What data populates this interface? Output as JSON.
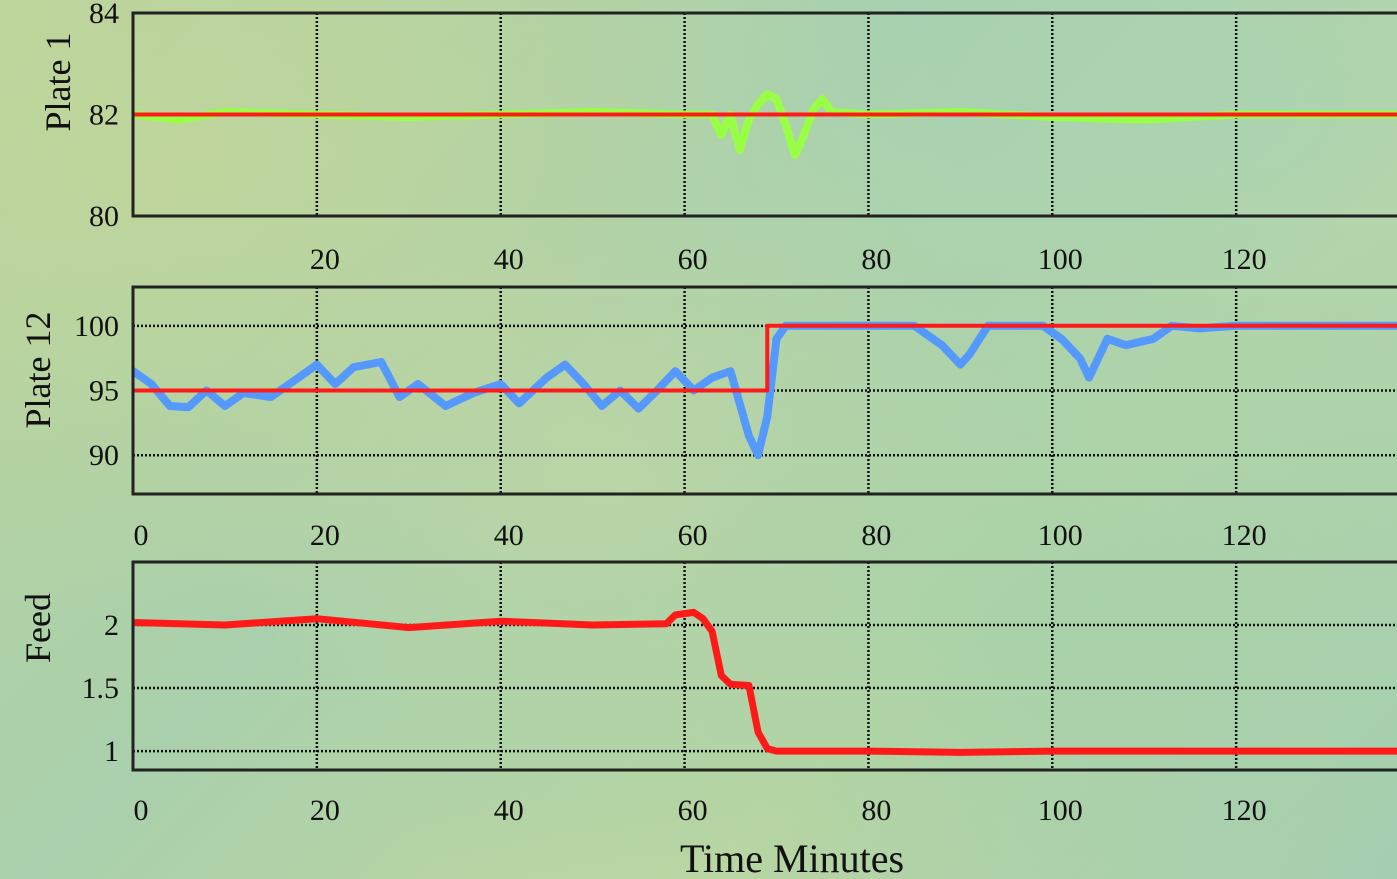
{
  "chart_data": [
    {
      "type": "line",
      "ylabel": "Plate 1",
      "xlabel": "",
      "xlim": [
        0,
        140
      ],
      "ylim": [
        80,
        84
      ],
      "x_ticks": [
        20,
        40,
        60,
        80,
        100,
        120
      ],
      "y_ticks": [
        80,
        82,
        84
      ],
      "grid": true,
      "series": [
        {
          "color": "#99ff44",
          "points": [
            [
              0,
              82
            ],
            [
              5,
              81.9
            ],
            [
              10,
              82.05
            ],
            [
              20,
              82
            ],
            [
              30,
              81.95
            ],
            [
              40,
              82
            ],
            [
              50,
              82.05
            ],
            [
              60,
              82
            ],
            [
              63,
              82
            ],
            [
              64,
              81.6
            ],
            [
              65,
              82
            ],
            [
              66,
              81.3
            ],
            [
              67,
              81.9
            ],
            [
              68,
              82.2
            ],
            [
              69,
              82.4
            ],
            [
              70,
              82.3
            ],
            [
              71,
              81.8
            ],
            [
              72,
              81.2
            ],
            [
              73,
              81.6
            ],
            [
              74,
              82.1
            ],
            [
              75,
              82.3
            ],
            [
              76,
              82.05
            ],
            [
              80,
              82
            ],
            [
              90,
              82.05
            ],
            [
              100,
              81.95
            ],
            [
              110,
              81.9
            ],
            [
              120,
              82
            ],
            [
              130,
              82
            ],
            [
              140,
              82
            ]
          ]
        },
        {
          "color": "#ff1a1a",
          "points": [
            [
              0,
              82
            ],
            [
              140,
              82
            ]
          ]
        }
      ]
    },
    {
      "type": "line",
      "ylabel": "Plate 12",
      "xlabel": "",
      "xlim": [
        0,
        140
      ],
      "ylim": [
        87,
        103
      ],
      "x_ticks": [
        0,
        20,
        40,
        60,
        80,
        100,
        120
      ],
      "y_ticks": [
        90,
        95,
        100
      ],
      "grid": true,
      "series": [
        {
          "color": "#5599ff",
          "points": [
            [
              0,
              96.5
            ],
            [
              2,
              95.5
            ],
            [
              4,
              93.8
            ],
            [
              6,
              93.7
            ],
            [
              8,
              95
            ],
            [
              10,
              93.8
            ],
            [
              12,
              94.8
            ],
            [
              15,
              94.5
            ],
            [
              18,
              96
            ],
            [
              20,
              97
            ],
            [
              22,
              95.5
            ],
            [
              24,
              96.8
            ],
            [
              27,
              97.2
            ],
            [
              29,
              94.5
            ],
            [
              31,
              95.5
            ],
            [
              34,
              93.8
            ],
            [
              37,
              94.8
            ],
            [
              40,
              95.5
            ],
            [
              42,
              94
            ],
            [
              45,
              96
            ],
            [
              47,
              97
            ],
            [
              49,
              95.5
            ],
            [
              51,
              93.8
            ],
            [
              53,
              95
            ],
            [
              55,
              93.6
            ],
            [
              57,
              95
            ],
            [
              59,
              96.5
            ],
            [
              61,
              95
            ],
            [
              63,
              96
            ],
            [
              65,
              96.5
            ],
            [
              67,
              91.5
            ],
            [
              68,
              90
            ],
            [
              69,
              93
            ],
            [
              70,
              99
            ],
            [
              71,
              100
            ],
            [
              80,
              100
            ],
            [
              85,
              100
            ],
            [
              88,
              98.5
            ],
            [
              90,
              97
            ],
            [
              91,
              97.8
            ],
            [
              93,
              100
            ],
            [
              99,
              100
            ],
            [
              101,
              99
            ],
            [
              103,
              97.5
            ],
            [
              104,
              96
            ],
            [
              106,
              99
            ],
            [
              108,
              98.5
            ],
            [
              111,
              99
            ],
            [
              113,
              100
            ],
            [
              116,
              99.8
            ],
            [
              120,
              100
            ],
            [
              140,
              100
            ]
          ]
        },
        {
          "color": "#ff1a1a",
          "points": [
            [
              0,
              95
            ],
            [
              69,
              95
            ],
            [
              69,
              100
            ],
            [
              140,
              100
            ]
          ]
        }
      ]
    },
    {
      "type": "line",
      "ylabel": "Feed",
      "xlabel": "Time Minutes",
      "xlim": [
        0,
        140
      ],
      "ylim": [
        0.85,
        2.5
      ],
      "x_ticks": [
        0,
        20,
        40,
        60,
        80,
        100,
        120
      ],
      "y_ticks": [
        1,
        1.5,
        2
      ],
      "y_tick_labels": [
        "1",
        "1.5",
        "2"
      ],
      "grid": true,
      "series": [
        {
          "color": "#ff1a1a",
          "points": [
            [
              0,
              2.02
            ],
            [
              10,
              2.0
            ],
            [
              20,
              2.05
            ],
            [
              30,
              1.98
            ],
            [
              40,
              2.03
            ],
            [
              50,
              2.0
            ],
            [
              58,
              2.01
            ],
            [
              59,
              2.08
            ],
            [
              61,
              2.1
            ],
            [
              62,
              2.05
            ],
            [
              63,
              1.95
            ],
            [
              64,
              1.6
            ],
            [
              65,
              1.53
            ],
            [
              67,
              1.52
            ],
            [
              68,
              1.15
            ],
            [
              69,
              1.02
            ],
            [
              70,
              1.0
            ],
            [
              80,
              1.0
            ],
            [
              90,
              0.99
            ],
            [
              100,
              1.0
            ],
            [
              110,
              1.0
            ],
            [
              120,
              1.0
            ],
            [
              130,
              1.0
            ],
            [
              140,
              1.0
            ]
          ]
        }
      ]
    }
  ]
}
